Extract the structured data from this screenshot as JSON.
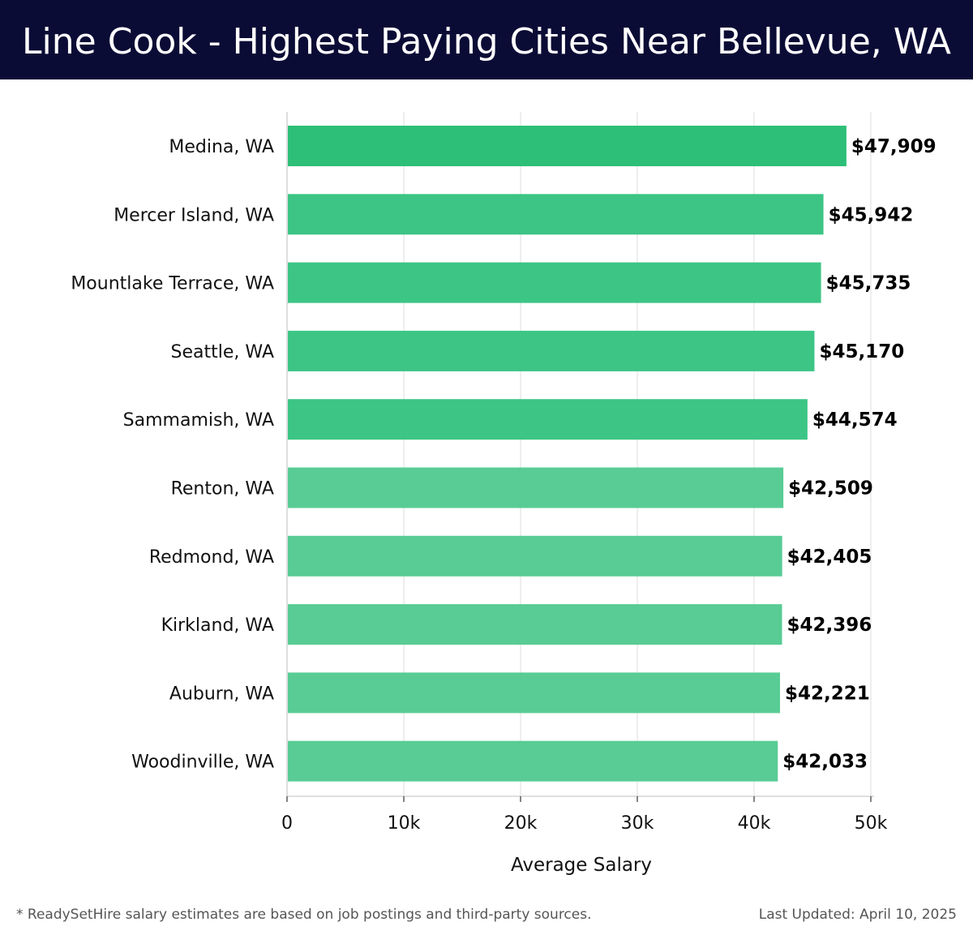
{
  "header": {
    "title": "Line Cook - Highest Paying Cities Near Bellevue, WA"
  },
  "chart_data": {
    "type": "bar",
    "orientation": "horizontal",
    "categories": [
      "Medina, WA",
      "Mercer Island, WA",
      "Mountlake Terrace, WA",
      "Seattle, WA",
      "Sammamish, WA",
      "Renton, WA",
      "Redmond, WA",
      "Kirkland, WA",
      "Auburn, WA",
      "Woodinville, WA"
    ],
    "values": [
      47909,
      45942,
      45735,
      45170,
      44574,
      42509,
      42405,
      42396,
      42221,
      42033
    ],
    "value_labels": [
      "$47,909",
      "$45,942",
      "$45,735",
      "$45,170",
      "$44,574",
      "$42,509",
      "$42,405",
      "$42,396",
      "$42,221",
      "$42,033"
    ],
    "xlabel": "Average Salary",
    "xlim": [
      0,
      50000
    ],
    "xticks": [
      {
        "value": 0,
        "label": "0"
      },
      {
        "value": 10000,
        "label": "10k"
      },
      {
        "value": 20000,
        "label": "20k"
      },
      {
        "value": 30000,
        "label": "30k"
      },
      {
        "value": 40000,
        "label": "40k"
      },
      {
        "value": 50000,
        "label": "50k"
      }
    ],
    "grid": true,
    "bar_colors": [
      "#2dbf78",
      "#3cc585",
      "#3cc585",
      "#3cc585",
      "#3cc585",
      "#58cc94",
      "#58cc94",
      "#58cc94",
      "#58cc94",
      "#58cc94"
    ]
  },
  "footer": {
    "note": "* ReadySetHire salary estimates are based on job postings and third-party sources.",
    "updated": "Last Updated: April 10, 2025"
  }
}
